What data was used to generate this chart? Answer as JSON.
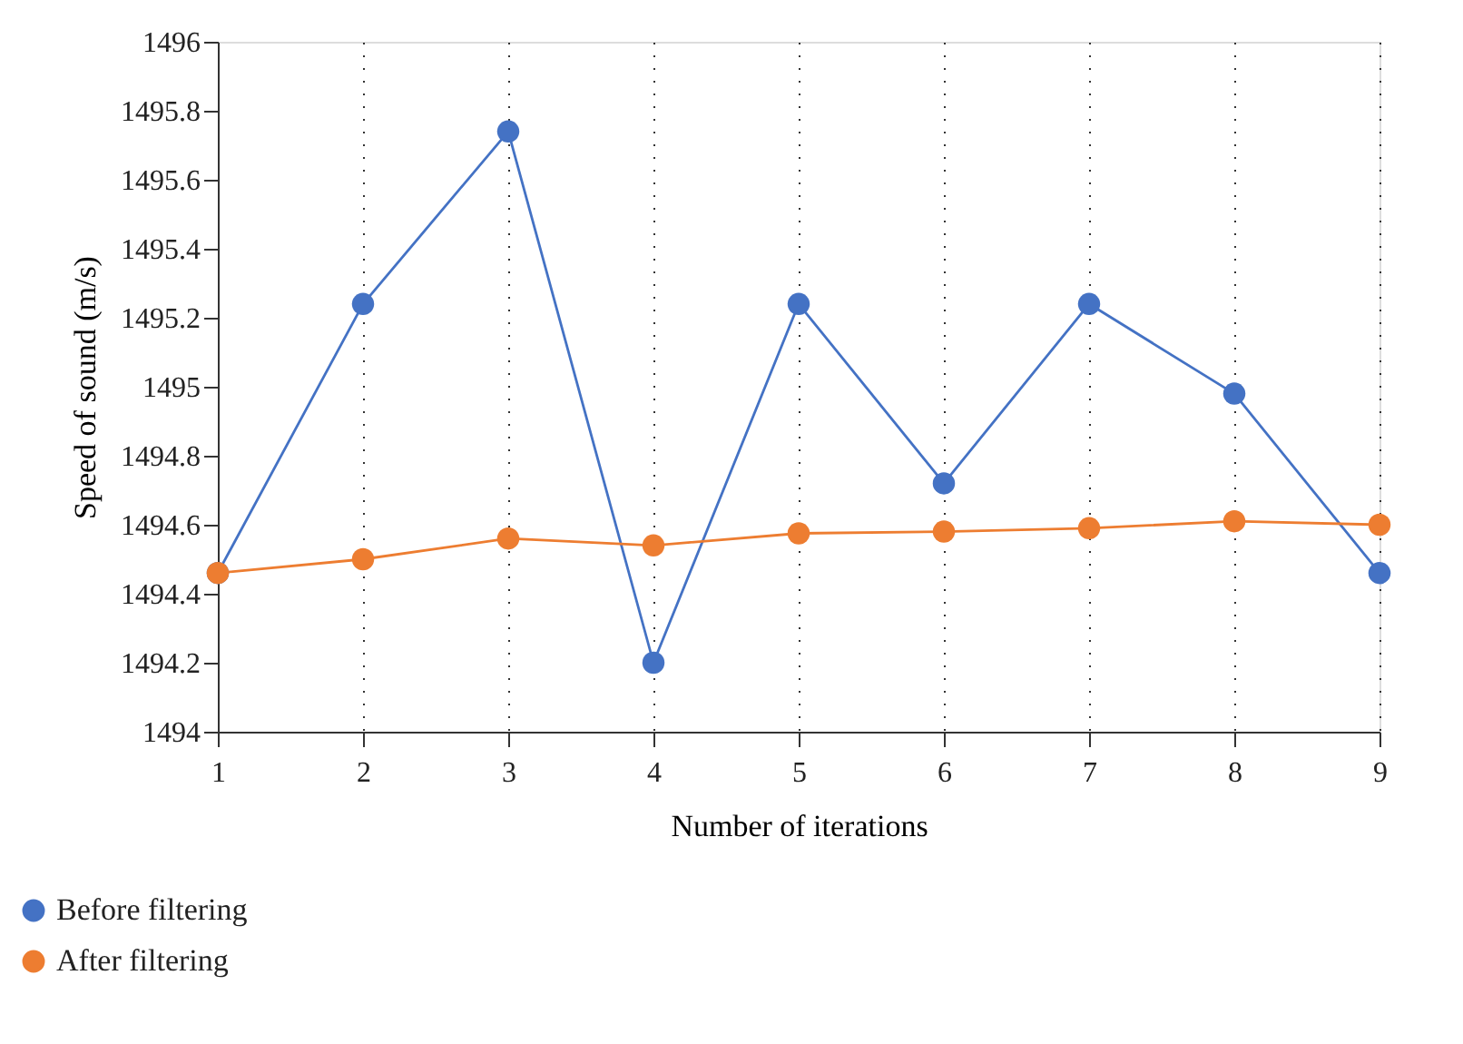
{
  "chart_data": {
    "type": "line",
    "xlabel": "Number of iterations",
    "ylabel": "Speed of sound (m/s)",
    "x": [
      1,
      2,
      3,
      4,
      5,
      6,
      7,
      8,
      9
    ],
    "xlim": [
      1,
      9
    ],
    "xticks": [
      1,
      2,
      3,
      4,
      5,
      6,
      7,
      8,
      9
    ],
    "ylim": [
      1494,
      1496
    ],
    "yticks": [
      1494,
      1494.2,
      1494.4,
      1494.6,
      1494.8,
      1495,
      1495.2,
      1495.4,
      1495.6,
      1495.8,
      1496
    ],
    "grid": "x",
    "legend": "bottom left",
    "marker": "circle",
    "line_style": "solid",
    "series": [
      {
        "name": "Before filtering",
        "color": "#4472c4",
        "values": [
          1494.46,
          1495.24,
          1495.74,
          1494.2,
          1495.24,
          1494.72,
          1495.24,
          1494.98,
          1494.46
        ]
      },
      {
        "name": "After filtering",
        "color": "#ed7d31",
        "values": [
          1494.46,
          1494.5,
          1494.56,
          1494.54,
          1494.575,
          1494.58,
          1494.59,
          1494.61,
          1494.6
        ]
      }
    ]
  }
}
